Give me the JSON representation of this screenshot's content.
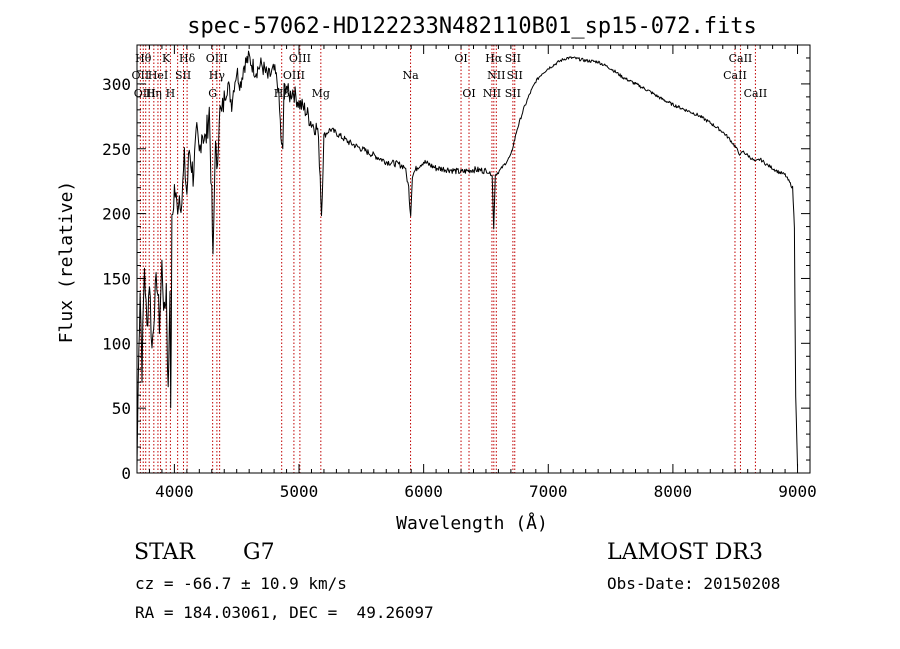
{
  "chart_data": {
    "type": "line",
    "title": "spec-57062-HD122233N482110B01_sp15-072.fits",
    "xlabel": "Wavelength (Å)",
    "ylabel": "Flux (relative)",
    "xlim": [
      3700,
      9100
    ],
    "ylim": [
      0,
      330
    ],
    "xticks": [
      4000,
      5000,
      6000,
      7000,
      8000,
      9000
    ],
    "yticks": [
      0,
      50,
      100,
      150,
      200,
      250,
      300
    ],
    "series": [
      {
        "name": "flux",
        "x": [
          3700,
          3710,
          3725,
          3740,
          3760,
          3780,
          3800,
          3820,
          3840,
          3860,
          3880,
          3900,
          3920,
          3935,
          3950,
          3965,
          3970,
          3980,
          4000,
          4020,
          4040,
          4060,
          4080,
          4100,
          4120,
          4150,
          4180,
          4200,
          4220,
          4250,
          4280,
          4300,
          4310,
          4330,
          4340,
          4360,
          4380,
          4400,
          4430,
          4460,
          4480,
          4500,
          4530,
          4560,
          4600,
          4650,
          4700,
          4750,
          4800,
          4830,
          4850,
          4860,
          4870,
          4880,
          4900,
          4920,
          4950,
          5000,
          5050,
          5100,
          5150,
          5170,
          5180,
          5200,
          5250,
          5300,
          5400,
          5500,
          5600,
          5700,
          5800,
          5850,
          5880,
          5890,
          5896,
          5910,
          5950,
          6000,
          6100,
          6200,
          6300,
          6400,
          6500,
          6550,
          6562,
          6575,
          6600,
          6650,
          6700,
          6750,
          6800,
          6850,
          6900,
          6950,
          7000,
          7050,
          7100,
          7150,
          7200,
          7300,
          7400,
          7500,
          7600,
          7700,
          7800,
          7900,
          8000,
          8100,
          8200,
          8300,
          8400,
          8450,
          8498,
          8510,
          8542,
          8560,
          8600,
          8662,
          8700,
          8750,
          8800,
          8850,
          8900,
          8930,
          8960,
          8975,
          8985,
          9000
        ],
        "values": [
          5,
          70,
          145,
          80,
          160,
          110,
          150,
          95,
          130,
          150,
          115,
          160,
          120,
          145,
          60,
          150,
          40,
          190,
          220,
          205,
          215,
          210,
          240,
          215,
          250,
          230,
          260,
          245,
          265,
          255,
          280,
          210,
          160,
          265,
          225,
          280,
          275,
          290,
          300,
          285,
          300,
          310,
          300,
          315,
          320,
          310,
          315,
          305,
          310,
          300,
          270,
          250,
          250,
          295,
          300,
          290,
          295,
          285,
          280,
          270,
          265,
          230,
          200,
          260,
          265,
          262,
          255,
          250,
          245,
          240,
          238,
          236,
          220,
          205,
          200,
          230,
          236,
          240,
          235,
          234,
          232,
          234,
          233,
          230,
          188,
          230,
          232,
          238,
          245,
          265,
          280,
          292,
          302,
          308,
          312,
          315,
          318,
          320,
          320,
          318,
          317,
          312,
          305,
          300,
          295,
          289,
          284,
          280,
          276,
          270,
          263,
          258,
          252,
          250,
          245,
          248,
          245,
          240,
          242,
          238,
          235,
          232,
          230,
          225,
          220,
          190,
          60,
          5
        ]
      }
    ],
    "line_marks": {
      "wavelengths": [
        3727,
        3750,
        3770,
        3798,
        3835,
        3868,
        3889,
        3934,
        3968,
        4026,
        4073,
        4102,
        4307,
        4341,
        4363,
        4861,
        4959,
        5007,
        5175,
        5895,
        6300,
        6364,
        6548,
        6563,
        6583,
        6716,
        6731,
        8498,
        8542,
        8662
      ],
      "labels": [
        {
          "text": "Hθ",
          "wl": 3750,
          "row": 0
        },
        {
          "text": "OII",
          "wl": 3727,
          "row": 1
        },
        {
          "text": "OIII",
          "wl": 3762,
          "row": 2
        },
        {
          "text": "Hη",
          "wl": 3835,
          "row": 2
        },
        {
          "text": "HeI",
          "wl": 3869,
          "row": 1
        },
        {
          "text": "K",
          "wl": 3934,
          "row": 0
        },
        {
          "text": "H",
          "wl": 3968,
          "row": 2
        },
        {
          "text": "SII",
          "wl": 4070,
          "row": 1
        },
        {
          "text": "Hδ",
          "wl": 4102,
          "row": 0
        },
        {
          "text": "OIII",
          "wl": 4340,
          "row": 0
        },
        {
          "text": "Hγ",
          "wl": 4341,
          "row": 1
        },
        {
          "text": "G",
          "wl": 4307,
          "row": 2
        },
        {
          "text": "OIII",
          "wl": 5007,
          "row": 0
        },
        {
          "text": "OIII",
          "wl": 4959,
          "row": 1
        },
        {
          "text": "Hβ",
          "wl": 4861,
          "row": 2
        },
        {
          "text": "Mg",
          "wl": 5175,
          "row": 2
        },
        {
          "text": "Na",
          "wl": 5895,
          "row": 1
        },
        {
          "text": "OI",
          "wl": 6300,
          "row": 0
        },
        {
          "text": "OI",
          "wl": 6364,
          "row": 2
        },
        {
          "text": "Hα",
          "wl": 6563,
          "row": 0
        },
        {
          "text": "SII",
          "wl": 6716,
          "row": 0
        },
        {
          "text": "NII",
          "wl": 6583,
          "row": 1
        },
        {
          "text": "SII",
          "wl": 6731,
          "row": 1
        },
        {
          "text": "NII",
          "wl": 6548,
          "row": 2
        },
        {
          "text": "SII",
          "wl": 6716,
          "row": 2
        },
        {
          "text": "CaII",
          "wl": 8542,
          "row": 0
        },
        {
          "text": "CaII",
          "wl": 8498,
          "row": 1
        },
        {
          "text": "CaII",
          "wl": 8662,
          "row": 2
        }
      ],
      "color": "#c00000"
    }
  },
  "info": {
    "object_type": "STAR",
    "subclass": "G7",
    "survey": "LAMOST DR3",
    "cz": "cz = -66.7 ± 10.9 km/s",
    "obs_date": "Obs-Date: 20150208",
    "radec": "RA = 184.03061, DEC =  49.26097"
  }
}
